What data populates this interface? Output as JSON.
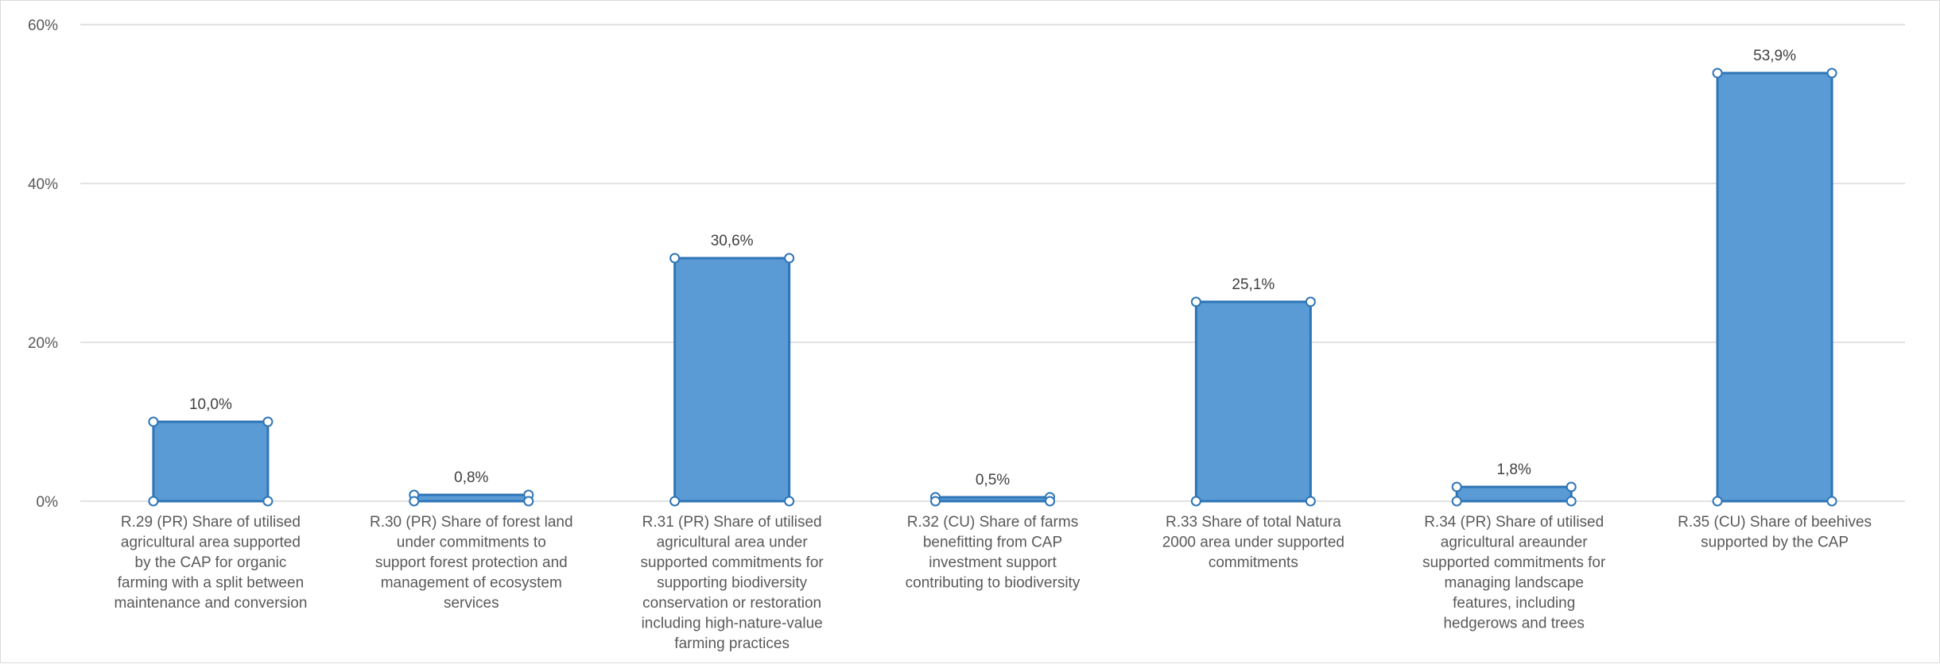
{
  "chart_data": {
    "type": "bar",
    "title": "",
    "xlabel": "",
    "ylabel": "",
    "ylim": [
      0,
      60
    ],
    "yticks": [
      {
        "value": 0,
        "label": "0%"
      },
      {
        "value": 20,
        "label": "20%"
      },
      {
        "value": 40,
        "label": "40%"
      },
      {
        "value": 60,
        "label": "60%"
      }
    ],
    "grid": true,
    "legend": "none",
    "bar_color": "#5b9bd5",
    "bar_edge_color": "#2e75b6",
    "gridline_color": "#d9d9d9",
    "categories": [
      [
        "R.29 (PR) Share of utilised",
        "agricultural area supported",
        "by the CAP for organic",
        "farming with a split between",
        "maintenance and conversion"
      ],
      [
        "R.30 (PR) Share of forest land",
        "under commitments to",
        "support forest protection and",
        "management of ecosystem",
        "services"
      ],
      [
        "R.31 (PR)  Share of utilised",
        "agricultural area under",
        "supported commitments for",
        "supporting biodiversity",
        "conservation or restoration",
        "including high-nature-value",
        "farming practices"
      ],
      [
        "R.32 (CU) Share of farms",
        "benefitting from CAP",
        "investment support",
        "contributing to biodiversity"
      ],
      [
        "R.33 Share of total Natura",
        "2000 area under supported",
        "commitments"
      ],
      [
        "R.34 (PR) Share of utilised",
        "agricultural areaunder",
        "supported commitments for",
        "managing landscape",
        "features, including",
        "hedgerows and trees"
      ],
      [
        "R.35 (CU) Share of beehives",
        "supported by the CAP"
      ]
    ],
    "values": [
      10.0,
      0.8,
      30.6,
      0.5,
      25.1,
      1.8,
      53.9
    ],
    "data_labels": [
      "10,0%",
      "0,8%",
      "30,6%",
      "0,5%",
      "25,1%",
      "1,8%",
      "53,9%"
    ]
  }
}
